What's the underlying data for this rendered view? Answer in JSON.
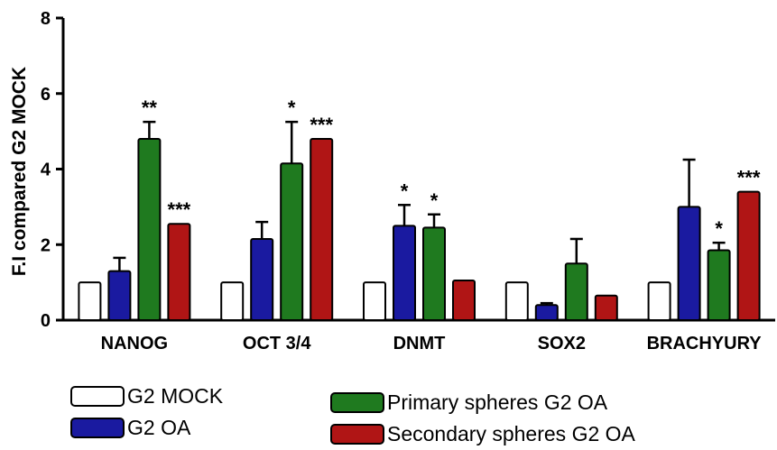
{
  "chart_data": {
    "type": "bar",
    "title": "",
    "xlabel": "",
    "ylabel": "F.I compared G2 MOCK",
    "ylim": [
      0,
      8
    ],
    "yticks": [
      0,
      2,
      4,
      6,
      8
    ],
    "grid": false,
    "legend_position": "bottom",
    "categories": [
      "NANOG",
      "OCT 3/4",
      "DNMT",
      "SOX2",
      "BRACHYURY"
    ],
    "series": [
      {
        "name": "G2 MOCK",
        "color": "#ffffff",
        "values": [
          1,
          1,
          1,
          1,
          1
        ],
        "errors": [
          0,
          0,
          0,
          0,
          0
        ],
        "significance": [
          "",
          "",
          "",
          "",
          ""
        ]
      },
      {
        "name": "G2 OA",
        "color": "#1a1aa0",
        "values": [
          1.3,
          2.15,
          2.5,
          0.4,
          3.0
        ],
        "errors": [
          0.35,
          0.45,
          0.55,
          0.05,
          1.25
        ],
        "significance": [
          "",
          "",
          "*",
          "",
          ""
        ]
      },
      {
        "name": "Primary spheres G2 OA",
        "color": "#1f7a1f",
        "values": [
          4.8,
          4.15,
          2.45,
          1.5,
          1.85
        ],
        "errors": [
          0.45,
          1.1,
          0.35,
          0.65,
          0.2
        ],
        "significance": [
          "**",
          "*",
          "*",
          "",
          "*"
        ]
      },
      {
        "name": "Secondary spheres G2 OA",
        "color": "#b01515",
        "values": [
          2.55,
          4.8,
          1.05,
          0.65,
          3.4
        ],
        "errors": [
          0,
          0,
          0,
          0,
          0
        ],
        "significance": [
          "***",
          "***",
          "",
          "",
          "***"
        ]
      }
    ]
  }
}
